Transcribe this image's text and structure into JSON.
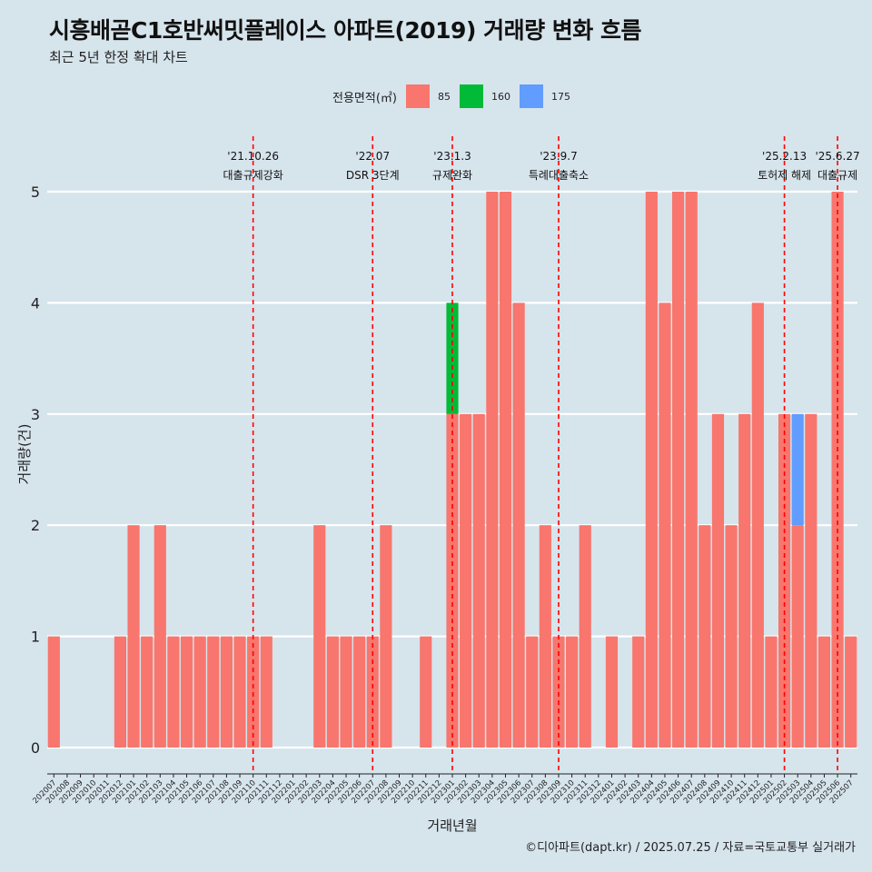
{
  "title": "시흥배곧C1호반써밋플레이스 아파트(2019) 거래량 변화 흐름",
  "subtitle": "최근 5년 한정 확대 차트",
  "caption": "©디아파트(dapt.kr) / 2025.07.25 / 자료=국토교통부 실거래가",
  "legend": {
    "title": "전용면적(㎡)",
    "items": [
      {
        "label": "85",
        "color": "#f8766d"
      },
      {
        "label": "160",
        "color": "#00ba38"
      },
      {
        "label": "175",
        "color": "#619cff"
      }
    ]
  },
  "chart_data": {
    "type": "bar",
    "xlabel": "거래년월",
    "ylabel": "거래량(건)",
    "ylim": [
      0,
      5
    ],
    "yticks": [
      0,
      1,
      2,
      3,
      4,
      5
    ],
    "categories": [
      "202007",
      "202008",
      "202009",
      "202010",
      "202011",
      "202012",
      "202101",
      "202102",
      "202103",
      "202104",
      "202105",
      "202106",
      "202107",
      "202108",
      "202109",
      "202110",
      "202111",
      "202112",
      "202201",
      "202202",
      "202203",
      "202204",
      "202205",
      "202206",
      "202207",
      "202208",
      "202209",
      "202210",
      "202211",
      "202212",
      "202301",
      "202302",
      "202303",
      "202304",
      "202305",
      "202306",
      "202307",
      "202308",
      "202309",
      "202310",
      "202311",
      "202312",
      "202401",
      "202402",
      "202403",
      "202404",
      "202405",
      "202406",
      "202407",
      "202408",
      "202409",
      "202410",
      "202411",
      "202412",
      "202501",
      "202502",
      "202503",
      "202504",
      "202505",
      "202506",
      "202507"
    ],
    "series": [
      {
        "name": "85",
        "color": "#f8766d",
        "values": [
          1,
          0,
          0,
          0,
          0,
          1,
          2,
          1,
          2,
          1,
          1,
          1,
          1,
          1,
          1,
          1,
          1,
          0,
          0,
          0,
          2,
          1,
          1,
          1,
          1,
          2,
          0,
          0,
          1,
          0,
          3,
          3,
          3,
          5,
          5,
          4,
          1,
          2,
          1,
          1,
          2,
          0,
          1,
          0,
          1,
          5,
          4,
          5,
          5,
          2,
          3,
          2,
          3,
          4,
          1,
          3,
          2,
          3,
          1,
          5,
          1
        ]
      },
      {
        "name": "160",
        "color": "#00ba38",
        "values": [
          0,
          0,
          0,
          0,
          0,
          0,
          0,
          0,
          0,
          0,
          0,
          0,
          0,
          0,
          0,
          0,
          0,
          0,
          0,
          0,
          0,
          0,
          0,
          0,
          0,
          0,
          0,
          0,
          0,
          0,
          1,
          0,
          0,
          0,
          0,
          0,
          0,
          0,
          0,
          0,
          0,
          0,
          0,
          0,
          0,
          0,
          0,
          0,
          0,
          0,
          0,
          0,
          0,
          0,
          0,
          0,
          0,
          0,
          0,
          0,
          0
        ]
      },
      {
        "name": "175",
        "color": "#619cff",
        "values": [
          0,
          0,
          0,
          0,
          0,
          0,
          0,
          0,
          0,
          0,
          0,
          0,
          0,
          0,
          0,
          0,
          0,
          0,
          0,
          0,
          0,
          0,
          0,
          0,
          0,
          0,
          0,
          0,
          0,
          0,
          0,
          0,
          0,
          0,
          0,
          0,
          0,
          0,
          0,
          0,
          0,
          0,
          0,
          0,
          0,
          0,
          0,
          0,
          0,
          0,
          0,
          0,
          0,
          0,
          0,
          0,
          1,
          0,
          0,
          0,
          0
        ]
      }
    ],
    "annotations": [
      {
        "date_label": "'21.10.26",
        "text": "대출규제강화",
        "month": "202110"
      },
      {
        "date_label": "'22.07",
        "text": "DSR 3단계",
        "month": "202207"
      },
      {
        "date_label": "'23.1.3",
        "text": "규제완화",
        "month": "202301"
      },
      {
        "date_label": "'23.9.7",
        "text": "특례대출축소",
        "month": "202309"
      },
      {
        "date_label": "'25.2.13",
        "text": "토허제 해제",
        "month": "202502"
      },
      {
        "date_label": "'25.6.27",
        "text": "대출규제",
        "month": "202506"
      }
    ],
    "grid": true,
    "legend_position": "top"
  }
}
